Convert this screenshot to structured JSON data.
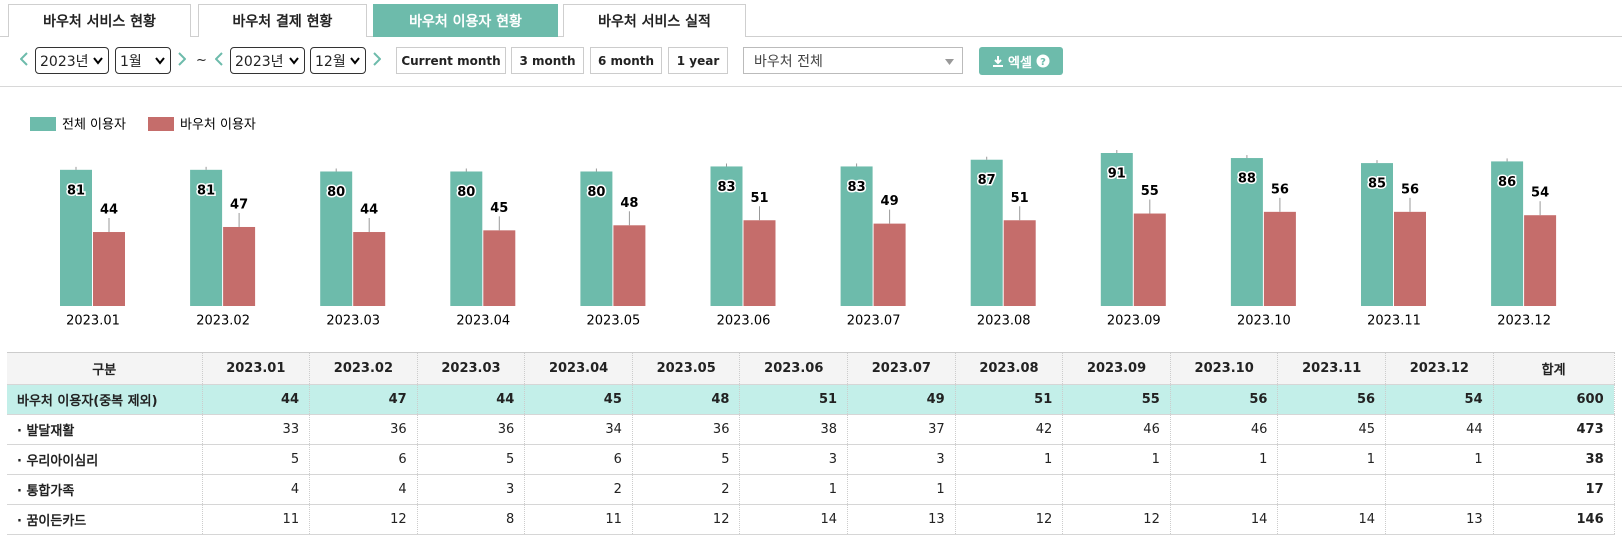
{
  "tabs": {
    "items": [
      "바우처 서비스 현황",
      "바우처 결제 현황",
      "바우처 이용자 현황",
      "바우처 서비스 실적"
    ],
    "active": 2
  },
  "filters": {
    "start_year": "2023년",
    "start_month": "1월",
    "separator": "~",
    "end_year": "2023년",
    "end_month": "12월",
    "period_buttons": [
      "Current month",
      "3 month",
      "6 month",
      "1 year"
    ],
    "voucher_select": "바우처 전체",
    "excel_button": "엑셀"
  },
  "chart_data": {
    "type": "bar",
    "categories": [
      "2023.01",
      "2023.02",
      "2023.03",
      "2023.04",
      "2023.05",
      "2023.06",
      "2023.07",
      "2023.08",
      "2023.09",
      "2023.10",
      "2023.11",
      "2023.12"
    ],
    "series": [
      {
        "name": "전체 이용자",
        "color": "#6dbbab",
        "values": [
          81,
          81,
          80,
          80,
          80,
          83,
          83,
          87,
          91,
          88,
          85,
          86
        ]
      },
      {
        "name": "바우처 이용자",
        "color": "#c56d6b",
        "values": [
          44,
          47,
          44,
          45,
          48,
          51,
          49,
          51,
          55,
          56,
          56,
          54
        ]
      }
    ],
    "legend": "top-left",
    "grid": false
  },
  "table": {
    "header": [
      "구분",
      "2023.01",
      "2023.02",
      "2023.03",
      "2023.04",
      "2023.05",
      "2023.06",
      "2023.07",
      "2023.08",
      "2023.09",
      "2023.10",
      "2023.11",
      "2023.12",
      "합계"
    ],
    "rows": [
      [
        "바우처 이용자(중복 제외)",
        44,
        47,
        44,
        45,
        48,
        51,
        49,
        51,
        55,
        56,
        56,
        54,
        600
      ],
      [
        "· 발달재활",
        33,
        36,
        36,
        34,
        36,
        38,
        37,
        42,
        46,
        46,
        45,
        44,
        473
      ],
      [
        "· 우리아이심리",
        5,
        6,
        5,
        6,
        5,
        3,
        3,
        1,
        1,
        1,
        1,
        1,
        38
      ],
      [
        "· 통합가족",
        4,
        4,
        3,
        2,
        2,
        1,
        1,
        null,
        null,
        null,
        null,
        null,
        17
      ],
      [
        "· 꿈이든카드",
        11,
        12,
        8,
        11,
        12,
        14,
        13,
        12,
        12,
        14,
        14,
        13,
        146
      ]
    ]
  }
}
